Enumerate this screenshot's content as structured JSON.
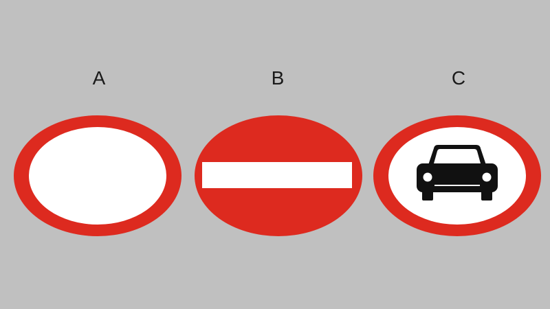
{
  "labels": {
    "a": "A",
    "b": "B",
    "c": "C"
  },
  "signs": [
    {
      "label": "A",
      "meaning": "no-vehicles",
      "icon": "empty-circle-icon"
    },
    {
      "label": "B",
      "meaning": "no-entry",
      "icon": "white-bar-icon"
    },
    {
      "label": "C",
      "meaning": "no-motor-cars",
      "icon": "car-icon"
    }
  ],
  "colors": {
    "background": "#c0c0c0",
    "sign_red": "#dd2a1f",
    "sign_white": "#ffffff",
    "symbol_black": "#111111",
    "label_text": "#1a1a1a"
  }
}
